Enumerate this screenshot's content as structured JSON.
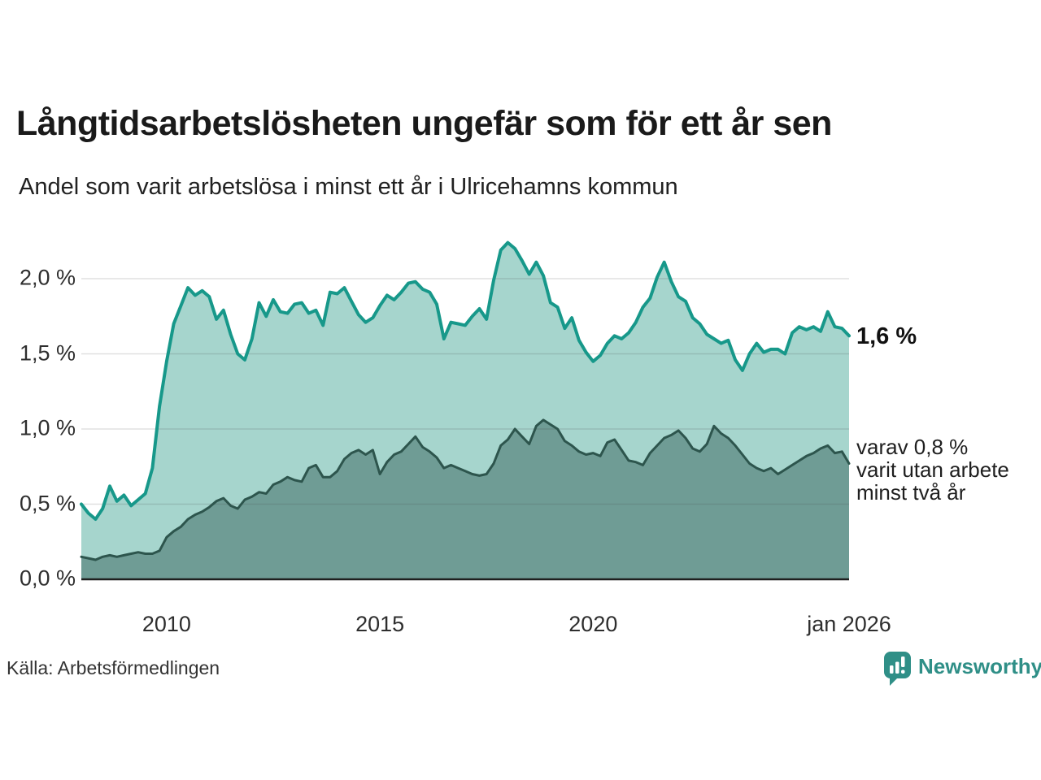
{
  "header": {
    "title": "Långtidsarbetslösheten ungefär som för ett år sen",
    "subtitle": "Andel som varit arbetslösa i minst ett år i Ulricehamns kommun"
  },
  "chart_data": {
    "type": "area",
    "title": "Långtidsarbetslösheten ungefär som för ett år sen",
    "x_unit": "year",
    "x_start": 2008.0,
    "x_end": 2026.0,
    "points_per_year": 6,
    "ylim": [
      0,
      2.3
    ],
    "xlim": [
      2008.0,
      2026.0
    ],
    "grid": "horizontal",
    "legend_position": "none",
    "yticks": [
      {
        "label": "0,0 %",
        "value": 0.0
      },
      {
        "label": "0,5 %",
        "value": 0.5
      },
      {
        "label": "1,0 %",
        "value": 1.0
      },
      {
        "label": "1,5 %",
        "value": 1.5
      },
      {
        "label": "2,0 %",
        "value": 2.0
      }
    ],
    "xticks": [
      {
        "label": "2010",
        "value": 2010.0
      },
      {
        "label": "2015",
        "value": 2015.0
      },
      {
        "label": "2020",
        "value": 2020.0
      },
      {
        "label": "jan 2026",
        "value": 2026.0
      }
    ],
    "series": [
      {
        "name": "Andel arbetslösa minst ett år",
        "latest_label": "1,6 %",
        "line_color": "#17988a",
        "fill_color": "#a6d5cd",
        "line_width": 4,
        "values": [
          0.5,
          0.44,
          0.4,
          0.47,
          0.62,
          0.52,
          0.56,
          0.49,
          0.53,
          0.57,
          0.74,
          1.15,
          1.45,
          1.7,
          1.82,
          1.94,
          1.89,
          1.92,
          1.88,
          1.73,
          1.79,
          1.63,
          1.5,
          1.46,
          1.6,
          1.84,
          1.75,
          1.86,
          1.78,
          1.77,
          1.83,
          1.84,
          1.77,
          1.79,
          1.69,
          1.91,
          1.9,
          1.94,
          1.85,
          1.76,
          1.71,
          1.74,
          1.82,
          1.89,
          1.86,
          1.91,
          1.97,
          1.98,
          1.93,
          1.91,
          1.83,
          1.6,
          1.71,
          1.7,
          1.69,
          1.75,
          1.8,
          1.73,
          1.99,
          2.19,
          2.24,
          2.2,
          2.12,
          2.03,
          2.11,
          2.02,
          1.84,
          1.81,
          1.67,
          1.74,
          1.59,
          1.51,
          1.45,
          1.49,
          1.57,
          1.62,
          1.6,
          1.64,
          1.71,
          1.81,
          1.87,
          2.01,
          2.11,
          1.98,
          1.88,
          1.85,
          1.74,
          1.7,
          1.63,
          1.6,
          1.57,
          1.59,
          1.46,
          1.39,
          1.5,
          1.57,
          1.51,
          1.53,
          1.53,
          1.5,
          1.64,
          1.68,
          1.66,
          1.68,
          1.65,
          1.78,
          1.68,
          1.67,
          1.62
        ]
      },
      {
        "name": "varav utan arbete minst två år",
        "latest_label": "0,8 %",
        "line_color": "#2d554d",
        "fill_color": "#6f9c95",
        "line_width": 3,
        "values": [
          0.15,
          0.14,
          0.13,
          0.15,
          0.16,
          0.15,
          0.16,
          0.17,
          0.18,
          0.17,
          0.17,
          0.19,
          0.28,
          0.32,
          0.35,
          0.4,
          0.43,
          0.45,
          0.48,
          0.52,
          0.54,
          0.49,
          0.47,
          0.53,
          0.55,
          0.58,
          0.57,
          0.63,
          0.65,
          0.68,
          0.66,
          0.65,
          0.74,
          0.76,
          0.68,
          0.68,
          0.72,
          0.8,
          0.84,
          0.86,
          0.83,
          0.86,
          0.7,
          0.78,
          0.83,
          0.85,
          0.9,
          0.95,
          0.88,
          0.85,
          0.81,
          0.74,
          0.76,
          0.74,
          0.72,
          0.7,
          0.69,
          0.7,
          0.77,
          0.89,
          0.93,
          1.0,
          0.95,
          0.9,
          1.02,
          1.06,
          1.03,
          1.0,
          0.92,
          0.89,
          0.85,
          0.83,
          0.84,
          0.82,
          0.91,
          0.93,
          0.86,
          0.79,
          0.78,
          0.76,
          0.84,
          0.89,
          0.94,
          0.96,
          0.99,
          0.94,
          0.87,
          0.85,
          0.9,
          1.02,
          0.97,
          0.94,
          0.89,
          0.83,
          0.77,
          0.74,
          0.72,
          0.74,
          0.7,
          0.73,
          0.76,
          0.79,
          0.82,
          0.84,
          0.87,
          0.89,
          0.84,
          0.85,
          0.77
        ]
      }
    ]
  },
  "annotations": {
    "latest_total": "1,6 %",
    "two_years_lines": [
      "varav 0,8 %",
      "varit utan arbete",
      "minst två år"
    ]
  },
  "footer": {
    "source": "Källa: Arbetsförmedlingen",
    "brand": "Newsworthy",
    "brand_icon": "speech-bubble-bar-chart-icon"
  },
  "colors": {
    "accent_teal": "#17988a",
    "light_fill": "#a6d5cd",
    "dark_fill": "#6f9c95",
    "dark_line": "#2d554d",
    "gridline": "#d9d9d9",
    "axis": "#1f1f1f",
    "brand_teal": "#2f8f87"
  }
}
